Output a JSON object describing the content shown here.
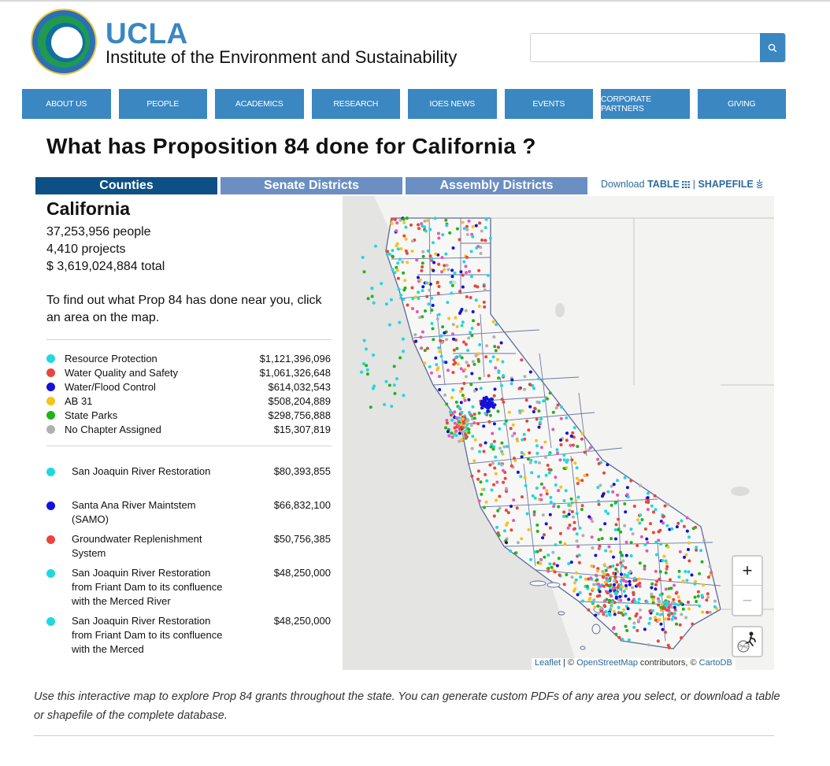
{
  "site": {
    "brand": "UCLA",
    "institute": "Institute of the Environment and Sustainability"
  },
  "search": {
    "value": "",
    "placeholder": ""
  },
  "nav": [
    {
      "label": "ABOUT US"
    },
    {
      "label": "PEOPLE"
    },
    {
      "label": "ACADEMICS"
    },
    {
      "label": "RESEARCH"
    },
    {
      "label": "IOES NEWS"
    },
    {
      "label": "EVENTS"
    },
    {
      "label": "CORPORATE PARTNERS"
    },
    {
      "label": "GIVING"
    }
  ],
  "page_title": "What has Proposition 84 done for California ?",
  "tabs": [
    {
      "label": "Counties",
      "active": true
    },
    {
      "label": "Senate Districts",
      "active": false
    },
    {
      "label": "Assembly Districts",
      "active": false
    }
  ],
  "download": {
    "prefix": "Download",
    "table": "TABLE",
    "sep": "|",
    "shapefile": "SHAPEFILE"
  },
  "region": {
    "name": "California",
    "people": "37,253,956 people",
    "projects": "4,410 projects",
    "total": "$ 3,619,024,884 total",
    "help": "To find out what Prop 84 has done near you, click an area on the map."
  },
  "legend": [
    {
      "name": "Resource Protection",
      "amount": "$1,121,396,096",
      "color": "#1fd8e0"
    },
    {
      "name": "Water Quality and Safety",
      "amount": "$1,061,326,648",
      "color": "#e8463c"
    },
    {
      "name": "Water/Flood Control",
      "amount": "$614,032,543",
      "color": "#1212d8"
    },
    {
      "name": "AB 31",
      "amount": "$508,204,889",
      "color": "#f7c21c"
    },
    {
      "name": "State Parks",
      "amount": "$298,756,888",
      "color": "#22b31c"
    },
    {
      "name": "No Chapter Assigned",
      "amount": "$15,307,819",
      "color": "#b0b0b0"
    }
  ],
  "top_projects": [
    {
      "name": "San Joaquin River Restoration",
      "amount": "$80,393,855",
      "color": "#1fd8e0"
    },
    {
      "name": "Santa Ana River Maintstem (SAMO)",
      "amount": "$66,832,100",
      "color": "#1212d8"
    },
    {
      "name": "Groundwater Replenishment System",
      "amount": "$50,756,385",
      "color": "#e8463c"
    },
    {
      "name": "San Joaquin River Restoration from Friant Dam to its confluence with the Merced River",
      "amount": "$48,250,000",
      "color": "#1fd8e0"
    },
    {
      "name": "San Joaquin River Restoration from Friant Dam to its confluence with the Merced",
      "amount": "$48,250,000",
      "color": "#1fd8e0"
    }
  ],
  "map": {
    "zoom_in": "+",
    "zoom_out": "−",
    "attribution": {
      "leaflet": "Leaflet",
      "sep1": " | © ",
      "osm": "OpenStreetMap",
      "mid": " contributors, © ",
      "carto": "CartoDB"
    }
  },
  "footer_note": "Use this interactive map to explore Prop 84 grants throughout the state. You can generate custom PDFs of any area you select, or download a table or shapefile of the complete database."
}
